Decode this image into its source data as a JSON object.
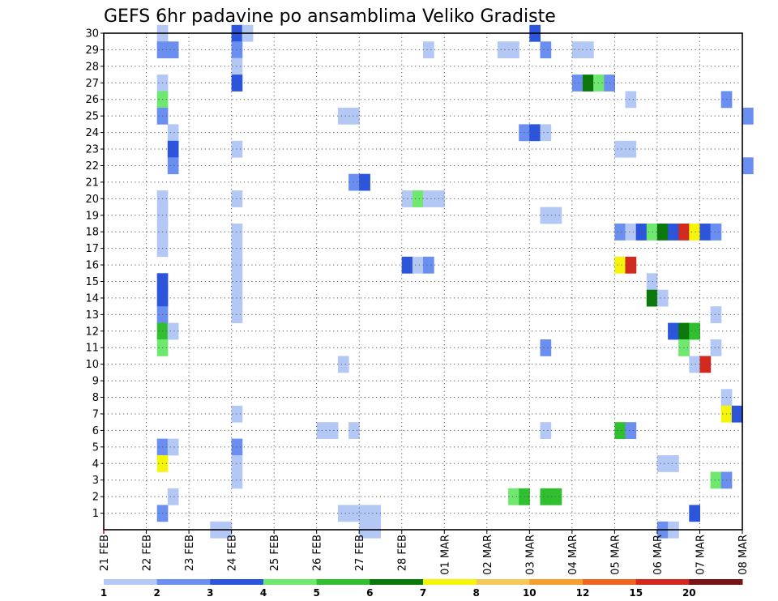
{
  "chart_data": {
    "type": "heatmap",
    "title": "GEFS 6hr padavine po ansamblima Veliko Gradiste",
    "xlabel": "",
    "ylabel": "",
    "x_tick_labels": [
      "21 FEB",
      "22 FEB",
      "23 FEB",
      "24 FEB",
      "25 FEB",
      "26 FEB",
      "27 FEB",
      "28 FEB",
      "01 MAR",
      "02 MAR",
      "03 MAR",
      "04 MAR",
      "05 MAR",
      "06 MAR",
      "07 MAR",
      "08 MAR"
    ],
    "x_range_days": [
      0,
      15
    ],
    "y_tick_labels": [
      "1",
      "2",
      "3",
      "4",
      "5",
      "6",
      "7",
      "8",
      "9",
      "10",
      "11",
      "12",
      "13",
      "14",
      "15",
      "16",
      "17",
      "18",
      "19",
      "20",
      "21",
      "22",
      "23",
      "24",
      "25",
      "26",
      "27",
      "28",
      "29",
      "30"
    ],
    "y_range": [
      0,
      30
    ],
    "grid": true,
    "colorbar": {
      "labels": [
        "1",
        "2",
        "3",
        "4",
        "5",
        "6",
        "7",
        "8",
        "10",
        "12",
        "15",
        "20"
      ],
      "colors": [
        "#b4c8f5",
        "#6a8ff0",
        "#2a55dc",
        "#6ee86e",
        "#2fbf2f",
        "#0a780a",
        "#f5f50a",
        "#f5c85a",
        "#f5a02d",
        "#f0641e",
        "#d2281e",
        "#781414"
      ]
    },
    "cells": [
      [
        1.25,
        30,
        1
      ],
      [
        1.25,
        29,
        2
      ],
      [
        1.25,
        27,
        1
      ],
      [
        1.25,
        26,
        4
      ],
      [
        1.25,
        25,
        2
      ],
      [
        1.25,
        20,
        1
      ],
      [
        1.25,
        19,
        1
      ],
      [
        1.25,
        18,
        1
      ],
      [
        1.25,
        17,
        1
      ],
      [
        1.25,
        15,
        3
      ],
      [
        1.25,
        14,
        3
      ],
      [
        1.25,
        13,
        2
      ],
      [
        1.25,
        12,
        5
      ],
      [
        1.25,
        11,
        4
      ],
      [
        1.25,
        5,
        2
      ],
      [
        1.25,
        4,
        7
      ],
      [
        1.25,
        1,
        2
      ],
      [
        1.5,
        29,
        2
      ],
      [
        1.5,
        24,
        1
      ],
      [
        1.5,
        23,
        3
      ],
      [
        1.5,
        22,
        2
      ],
      [
        1.5,
        12,
        1
      ],
      [
        1.5,
        5,
        1
      ],
      [
        1.5,
        2,
        1
      ],
      [
        2.5,
        0,
        1
      ],
      [
        2.75,
        0,
        1
      ],
      [
        3.0,
        30,
        3
      ],
      [
        3.0,
        29,
        2
      ],
      [
        3.0,
        28,
        1
      ],
      [
        3.0,
        27,
        3
      ],
      [
        3.0,
        23,
        1
      ],
      [
        3.0,
        20,
        1
      ],
      [
        3.0,
        18,
        1
      ],
      [
        3.0,
        17,
        1
      ],
      [
        3.0,
        16,
        1
      ],
      [
        3.0,
        15,
        1
      ],
      [
        3.0,
        14,
        1
      ],
      [
        3.0,
        13,
        1
      ],
      [
        3.0,
        7,
        1
      ],
      [
        3.0,
        5,
        2
      ],
      [
        3.0,
        4,
        1
      ],
      [
        3.0,
        3,
        1
      ],
      [
        3.25,
        30,
        1
      ],
      [
        5.0,
        6,
        1
      ],
      [
        5.25,
        6,
        1
      ],
      [
        5.5,
        10,
        1
      ],
      [
        5.5,
        25,
        1
      ],
      [
        5.5,
        1,
        1
      ],
      [
        5.75,
        25,
        1
      ],
      [
        5.75,
        6,
        1
      ],
      [
        5.75,
        21,
        2
      ],
      [
        5.75,
        1,
        1
      ],
      [
        6.0,
        21,
        3
      ],
      [
        6.0,
        1,
        1
      ],
      [
        6.0,
        0,
        1
      ],
      [
        6.25,
        1,
        1
      ],
      [
        6.25,
        0,
        1
      ],
      [
        7.0,
        20,
        1
      ],
      [
        7.0,
        16,
        3
      ],
      [
        7.25,
        20,
        4
      ],
      [
        7.25,
        16,
        1
      ],
      [
        7.5,
        16,
        2
      ],
      [
        7.5,
        20,
        1
      ],
      [
        7.5,
        29,
        1
      ],
      [
        7.75,
        20,
        1
      ],
      [
        9.25,
        29,
        1
      ],
      [
        9.5,
        29,
        1
      ],
      [
        9.5,
        2,
        4
      ],
      [
        9.75,
        2,
        5
      ],
      [
        9.75,
        24,
        2
      ],
      [
        10.0,
        24,
        3
      ],
      [
        10.0,
        30,
        3
      ],
      [
        10.25,
        29,
        2
      ],
      [
        10.25,
        24,
        1
      ],
      [
        10.25,
        11,
        2
      ],
      [
        10.25,
        6,
        1
      ],
      [
        10.25,
        2,
        5
      ],
      [
        10.25,
        19,
        1
      ],
      [
        10.5,
        2,
        5
      ],
      [
        10.5,
        19,
        1
      ],
      [
        11.0,
        27,
        2
      ],
      [
        11.0,
        29,
        1
      ],
      [
        11.25,
        27,
        6
      ],
      [
        11.25,
        29,
        1
      ],
      [
        11.5,
        27,
        4
      ],
      [
        11.75,
        27,
        2
      ],
      [
        12.0,
        18,
        2
      ],
      [
        12.0,
        16,
        7
      ],
      [
        12.0,
        6,
        5
      ],
      [
        12.0,
        23,
        1
      ],
      [
        12.25,
        26,
        1
      ],
      [
        12.25,
        18,
        1
      ],
      [
        12.25,
        16,
        11
      ],
      [
        12.25,
        6,
        2
      ],
      [
        12.25,
        23,
        1
      ],
      [
        12.5,
        18,
        3
      ],
      [
        12.75,
        18,
        4
      ],
      [
        12.75,
        15,
        1
      ],
      [
        12.75,
        14,
        6
      ],
      [
        13.0,
        18,
        6
      ],
      [
        13.0,
        14,
        1
      ],
      [
        13.0,
        4,
        1
      ],
      [
        13.0,
        0,
        2
      ],
      [
        13.25,
        18,
        3
      ],
      [
        13.25,
        12,
        3
      ],
      [
        13.25,
        4,
        1
      ],
      [
        13.25,
        0,
        1
      ],
      [
        13.5,
        18,
        11
      ],
      [
        13.5,
        12,
        6
      ],
      [
        13.5,
        11,
        4
      ],
      [
        13.75,
        18,
        7
      ],
      [
        13.75,
        12,
        5
      ],
      [
        13.75,
        10,
        1
      ],
      [
        13.75,
        1,
        3
      ],
      [
        14.0,
        18,
        3
      ],
      [
        14.0,
        10,
        11
      ],
      [
        14.25,
        18,
        2
      ],
      [
        14.25,
        13,
        1
      ],
      [
        14.25,
        11,
        1
      ],
      [
        14.25,
        3,
        4
      ],
      [
        14.5,
        26,
        2
      ],
      [
        14.5,
        8,
        1
      ],
      [
        14.5,
        7,
        7
      ],
      [
        14.5,
        3,
        2
      ],
      [
        14.75,
        7,
        3
      ],
      [
        15.0,
        25,
        2
      ],
      [
        15.0,
        22,
        2
      ]
    ]
  }
}
